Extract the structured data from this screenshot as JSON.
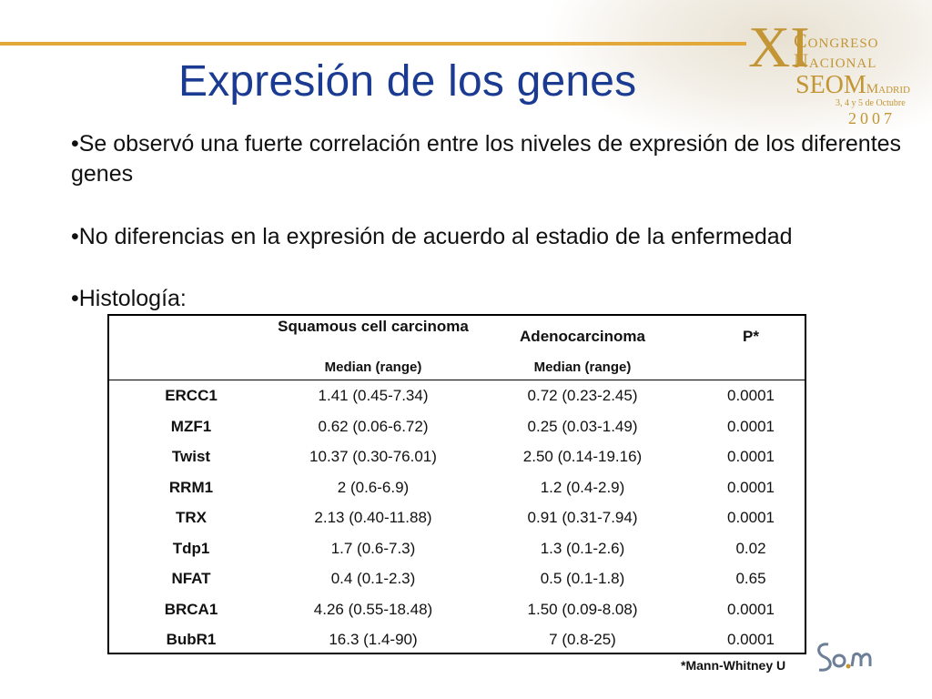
{
  "slide": {
    "title": "Expresión de los genes",
    "bullets": [
      "•Se observó una fuerte correlación entre los niveles de expresión de los diferentes genes",
      "•No diferencias en la expresión de acuerdo al estadio de la enfermedad",
      "•Histología:"
    ]
  },
  "logo": {
    "numeral": "XI",
    "line1": "Congreso",
    "line2": "Nacional",
    "org": "SEOM",
    "city": "Madrid",
    "dates": "3, 4 y 5 de Octubre",
    "year": "2007"
  },
  "table": {
    "headers": {
      "col1": "Squamous cell carcinoma",
      "col2": "Adenocarcinoma",
      "col3": "P*",
      "sub1": "Median (range)",
      "sub2": "Median (range)"
    },
    "rows": [
      {
        "gene": "ERCC1",
        "squamous": "1.41 (0.45-7.34)",
        "adeno": "0.72 (0.23-2.45)",
        "p": "0.0001"
      },
      {
        "gene": "MZF1",
        "squamous": "0.62 (0.06-6.72)",
        "adeno": "0.25 (0.03-1.49)",
        "p": "0.0001"
      },
      {
        "gene": "Twist",
        "squamous": "10.37 (0.30-76.01)",
        "adeno": "2.50 (0.14-19.16)",
        "p": "0.0001"
      },
      {
        "gene": "RRM1",
        "squamous": "2 (0.6-6.9)",
        "adeno": "1.2 (0.4-2.9)",
        "p": "0.0001"
      },
      {
        "gene": "TRX",
        "squamous": "2.13 (0.40-11.88)",
        "adeno": "0.91 (0.31-7.94)",
        "p": "0.0001"
      },
      {
        "gene": "Tdp1",
        "squamous": "1.7 (0.6-7.3)",
        "adeno": "1.3 (0.1-2.6)",
        "p": "0.02"
      },
      {
        "gene": "NFAT",
        "squamous": "0.4 (0.1-2.3)",
        "adeno": "0.5 (0.1-1.8)",
        "p": "0.65"
      },
      {
        "gene": "BRCA1",
        "squamous": "4.26 (0.55-18.48)",
        "adeno": "1.50 (0.09-8.08)",
        "p": "0.0001"
      },
      {
        "gene": "BubR1",
        "squamous": "16.3 (1.4-90)",
        "adeno": "7 (0.8-25)",
        "p": "0.0001"
      }
    ]
  },
  "footnote": "*Mann-Whitney U",
  "colors": {
    "title": "#1a3b91",
    "accent": "#e2a93a",
    "logo": "#c29535"
  }
}
